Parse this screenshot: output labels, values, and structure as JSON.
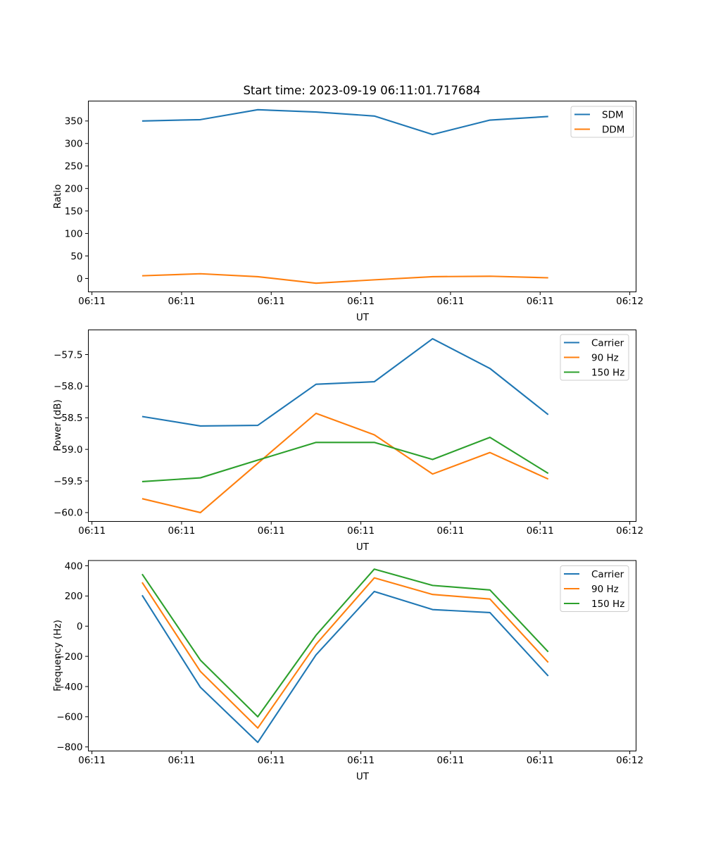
{
  "figure": {
    "title": "Start time: 2023-09-19 06:11:01.717684",
    "background": "#ffffff"
  },
  "chart_data": [
    {
      "type": "line",
      "title": "",
      "xlabel": "UT",
      "ylabel": "Ratio",
      "grid": false,
      "legend_position": "upper right",
      "x_seconds_after_0611": [
        5.6,
        12.1,
        18.5,
        25.0,
        31.5,
        38.0,
        44.4,
        50.9
      ],
      "xlim": [
        -0.4,
        60.7
      ],
      "xtick_positions": [
        0,
        10,
        20,
        30,
        40,
        50,
        60
      ],
      "xtick_labels": [
        "06:11",
        "06:11",
        "06:11",
        "06:11",
        "06:11",
        "06:11",
        "06:12"
      ],
      "ylim": [
        -29.8,
        394.3
      ],
      "ytick_positions": [
        0,
        50,
        100,
        150,
        200,
        250,
        300,
        350
      ],
      "ytick_labels": [
        "0",
        "50",
        "100",
        "150",
        "200",
        "250",
        "300",
        "350"
      ],
      "series": [
        {
          "name": "SDM",
          "color": "#1f77b4",
          "values": [
            350,
            353,
            375,
            370,
            361,
            320,
            352,
            360
          ]
        },
        {
          "name": "DDM",
          "color": "#ff7f0e",
          "values": [
            6,
            10.5,
            4,
            -10.5,
            -3,
            4,
            5,
            1.5
          ]
        }
      ]
    },
    {
      "type": "line",
      "title": "",
      "xlabel": "UT",
      "ylabel": "Power (dB)",
      "grid": false,
      "legend_position": "upper right",
      "x_seconds_after_0611": [
        5.6,
        12.1,
        18.5,
        25.0,
        31.5,
        38.0,
        44.4,
        50.9
      ],
      "xlim": [
        -0.4,
        60.7
      ],
      "xtick_positions": [
        0,
        10,
        20,
        30,
        40,
        50,
        60
      ],
      "xtick_labels": [
        "06:11",
        "06:11",
        "06:11",
        "06:11",
        "06:11",
        "06:11",
        "06:12"
      ],
      "ylim": [
        -60.14,
        -57.11
      ],
      "ytick_positions": [
        -57.5,
        -58.0,
        -58.5,
        -59.0,
        -59.5,
        -60.0
      ],
      "ytick_labels": [
        "−57.5",
        "−58.0",
        "−58.5",
        "−59.0",
        "−59.5",
        "−60.0"
      ],
      "series": [
        {
          "name": "Carrier",
          "color": "#1f77b4",
          "values": [
            -58.48,
            -58.63,
            -58.62,
            -57.97,
            -57.93,
            -57.25,
            -57.72,
            -58.45
          ]
        },
        {
          "name": "90 Hz",
          "color": "#ff7f0e",
          "values": [
            -59.78,
            -60.0,
            -59.22,
            -58.43,
            -58.77,
            -59.39,
            -59.05,
            -59.47
          ]
        },
        {
          "name": "150 Hz",
          "color": "#2ca02c",
          "values": [
            -59.51,
            -59.45,
            -59.17,
            -58.89,
            -58.89,
            -59.16,
            -58.81,
            -59.38
          ]
        }
      ]
    },
    {
      "type": "line",
      "title": "",
      "xlabel": "UT",
      "ylabel": "Frequency (Hz)",
      "grid": false,
      "legend_position": "upper right",
      "x_seconds_after_0611": [
        5.6,
        12.1,
        18.5,
        25.0,
        31.5,
        38.0,
        44.4,
        50.9
      ],
      "xlim": [
        -0.4,
        60.7
      ],
      "xtick_positions": [
        0,
        10,
        20,
        30,
        40,
        50,
        60
      ],
      "xtick_labels": [
        "06:11",
        "06:11",
        "06:11",
        "06:11",
        "06:11",
        "06:11",
        "06:12"
      ],
      "ylim": [
        -827,
        435
      ],
      "ytick_positions": [
        400,
        200,
        0,
        -200,
        -400,
        -600,
        -800
      ],
      "ytick_labels": [
        "400",
        "200",
        "0",
        "−200",
        "−400",
        "−600",
        "−800"
      ],
      "series": [
        {
          "name": "Carrier",
          "color": "#1f77b4",
          "values": [
            205,
            -405,
            -770,
            -190,
            230,
            110,
            90,
            -330
          ]
        },
        {
          "name": "90 Hz",
          "color": "#ff7f0e",
          "values": [
            290,
            -300,
            -675,
            -120,
            320,
            210,
            180,
            -240
          ]
        },
        {
          "name": "150 Hz",
          "color": "#2ca02c",
          "values": [
            345,
            -225,
            -600,
            -60,
            378,
            270,
            240,
            -170
          ]
        }
      ]
    }
  ]
}
